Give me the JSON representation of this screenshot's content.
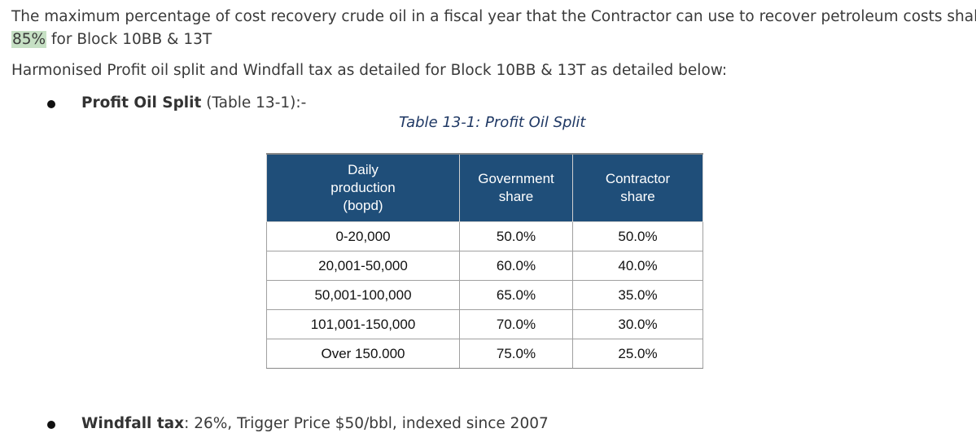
{
  "intro": {
    "line1": "The maximum percentage of cost recovery crude oil in a fiscal year that the Contractor can use to recover petroleum costs shall be",
    "highlight": "85%",
    "line2_rest": " for Block 10BB & 13T"
  },
  "harmonised": "Harmonised Profit oil split and Windfall tax as detailed for Block 10BB & 13T as detailed below:",
  "bullet1": {
    "bold": "Profit Oil Split",
    "rest": " (Table 13-1):-"
  },
  "caption": "Table 13-1: Profit Oil Split",
  "table": {
    "headers": {
      "col1_line1": "Daily",
      "col1_line2": "production",
      "col1_line3": "(bopd)",
      "col2_line1": "Government",
      "col2_line2": "share",
      "col3_line1": "Contractor",
      "col3_line2": "share"
    },
    "rows": [
      {
        "production": "0-20,000",
        "government": "50.0%",
        "contractor": "50.0%"
      },
      {
        "production": "20,001-50,000",
        "government": "60.0%",
        "contractor": "40.0%"
      },
      {
        "production": "50,001-100,000",
        "government": "65.0%",
        "contractor": "35.0%"
      },
      {
        "production": "101,001-150,000",
        "government": "70.0%",
        "contractor": "30.0%"
      },
      {
        "production": "Over 150.000",
        "government": "75.0%",
        "contractor": "25.0%"
      }
    ]
  },
  "bullet2": {
    "bold": "Windfall tax",
    "rest": ": 26%, Trigger Price $50/bbl, indexed since 2007"
  }
}
